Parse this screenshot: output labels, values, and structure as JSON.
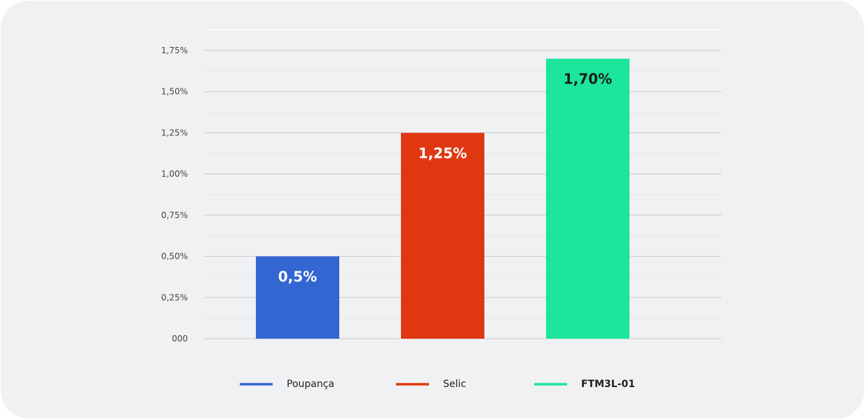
{
  "chart_data": {
    "type": "bar",
    "title": "",
    "xlabel": "",
    "ylabel": "",
    "categories": [
      "Poupança",
      "Selic",
      "FTM3L-01"
    ],
    "values": [
      0.5,
      1.25,
      1.7
    ],
    "data_labels": [
      "0,5%",
      "1,25%",
      "1,70%"
    ],
    "colors": [
      "#3366d1",
      "#df3811",
      "#1be69b"
    ],
    "label_colors": [
      "#ffffff",
      "#ffffff",
      "#1c1c1c"
    ],
    "ylim": [
      0,
      1.875
    ],
    "yticks": [
      0,
      0.25,
      0.5,
      0.75,
      1.0,
      1.25,
      1.5,
      1.75
    ],
    "ytick_labels": [
      "000",
      "0,25%",
      "0,50%",
      "0,75%",
      "1,00%",
      "1,25%",
      "1,50%",
      "1,75%"
    ],
    "grid": true,
    "legend": {
      "placement": "bottom",
      "entries": [
        "Poupança",
        "Selic",
        "FTM3L-01"
      ],
      "bold": [
        false,
        false,
        true
      ]
    }
  }
}
